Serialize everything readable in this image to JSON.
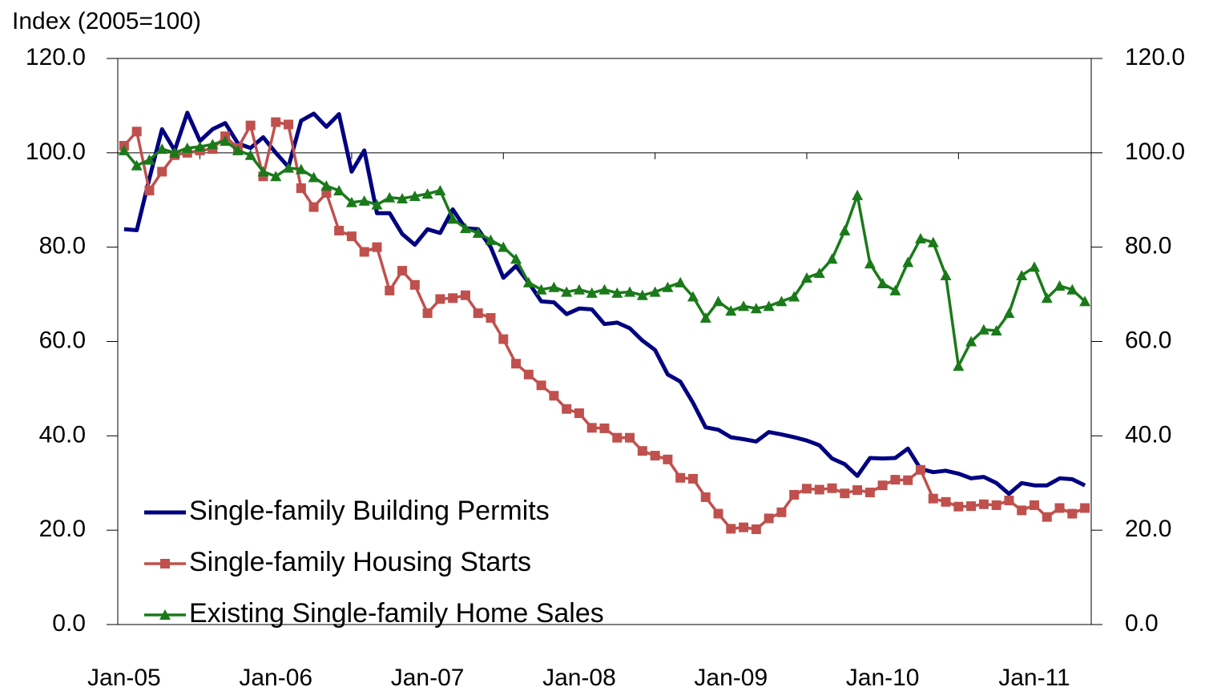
{
  "chart_data": {
    "type": "line",
    "y_axis_label": "Index (2005=100)",
    "categories": [
      "Jan-05",
      null,
      null,
      null,
      null,
      null,
      null,
      null,
      null,
      null,
      null,
      null,
      "Jan-06",
      null,
      null,
      null,
      null,
      null,
      null,
      null,
      null,
      null,
      null,
      null,
      "Jan-07",
      null,
      null,
      null,
      null,
      null,
      null,
      null,
      null,
      null,
      null,
      null,
      "Jan-08",
      null,
      null,
      null,
      null,
      null,
      null,
      null,
      null,
      null,
      null,
      null,
      "Jan-09",
      null,
      null,
      null,
      null,
      null,
      null,
      null,
      null,
      null,
      null,
      null,
      "Jan-10",
      null,
      null,
      null,
      null,
      null,
      null,
      null,
      null,
      null,
      null,
      null,
      "Jan-11",
      null,
      null,
      null,
      null
    ],
    "series": [
      {
        "name": "Single-family Building Permits",
        "color": "#000080",
        "marker": "none",
        "values": [
          83.8,
          83.6,
          94.5,
          105.0,
          100.5,
          108.5,
          102.5,
          105.0,
          106.3,
          102.0,
          101.0,
          103.3,
          100.0,
          97.0,
          106.8,
          108.3,
          105.5,
          108.2,
          96.0,
          100.5,
          87.2,
          87.2,
          82.8,
          80.5,
          83.8,
          83.0,
          88.0,
          84.0,
          83.8,
          80.0,
          73.5,
          76.0,
          72.5,
          68.5,
          68.3,
          65.8,
          67.0,
          66.8,
          63.7,
          64.0,
          62.8,
          60.2,
          58.2,
          53.0,
          51.5,
          47.0,
          41.8,
          41.3,
          39.7,
          39.3,
          38.8,
          40.8,
          40.3,
          39.7,
          39.0,
          38.0,
          35.2,
          34.0,
          31.5,
          35.3,
          35.2,
          35.3,
          37.3,
          33.0,
          32.3,
          32.6,
          32.0,
          31.0,
          31.3,
          30.0,
          27.7,
          30.0,
          29.5,
          29.5,
          31.0,
          30.8,
          29.5
        ]
      },
      {
        "name": "Single-family Housing Starts",
        "color": "#c0504d",
        "marker": "square",
        "values": [
          101.5,
          104.5,
          92.0,
          96.0,
          99.5,
          100.0,
          100.5,
          100.8,
          103.5,
          101.0,
          105.8,
          95.0,
          106.5,
          106.0,
          92.5,
          88.5,
          91.5,
          83.5,
          82.3,
          79.0,
          80.0,
          70.8,
          75.0,
          72.0,
          66.0,
          69.0,
          69.2,
          69.8,
          66.0,
          65.0,
          60.5,
          55.3,
          53.0,
          50.7,
          48.5,
          45.7,
          44.8,
          41.7,
          41.6,
          39.6,
          39.6,
          36.8,
          35.8,
          35.0,
          31.1,
          30.9,
          27.0,
          23.5,
          20.3,
          20.6,
          20.2,
          22.5,
          23.8,
          27.5,
          28.8,
          28.6,
          28.9,
          27.8,
          28.5,
          28.0,
          29.5,
          30.7,
          30.6,
          32.8,
          26.7,
          26.0,
          25.0,
          25.1,
          25.5,
          25.3,
          26.3,
          24.2,
          25.3,
          22.8,
          24.7,
          23.5,
          24.7
        ]
      },
      {
        "name": "Existing Single-family Home Sales",
        "color": "#1a7a1a",
        "marker": "triangle",
        "values": [
          100.5,
          97.3,
          98.5,
          100.8,
          100.0,
          101.0,
          101.3,
          101.8,
          102.5,
          100.5,
          99.5,
          96.0,
          95.0,
          96.8,
          96.5,
          94.8,
          93.0,
          92.0,
          89.5,
          89.8,
          89.0,
          90.5,
          90.3,
          90.8,
          91.3,
          92.0,
          86.0,
          84.0,
          83.0,
          81.5,
          80.0,
          77.5,
          72.5,
          71.0,
          71.5,
          70.5,
          71.0,
          70.3,
          71.0,
          70.3,
          70.5,
          69.8,
          70.5,
          71.5,
          72.5,
          69.5,
          65.0,
          68.5,
          66.5,
          67.5,
          67.0,
          67.5,
          68.5,
          69.5,
          73.5,
          74.5,
          77.5,
          83.5,
          91.0,
          76.5,
          72.3,
          70.8,
          76.8,
          81.8,
          81.0,
          74.0,
          54.8,
          60.0,
          62.5,
          62.3,
          66.0,
          74.0,
          75.8,
          69.2,
          71.8,
          71.0,
          68.5
        ]
      }
    ],
    "ylim": [
      0,
      120
    ],
    "yticks": [
      {
        "value": 0,
        "label": "0.0"
      },
      {
        "value": 20,
        "label": "20.0"
      },
      {
        "value": 40,
        "label": "40.0"
      },
      {
        "value": 60,
        "label": "60.0"
      },
      {
        "value": 80,
        "label": "80.0"
      },
      {
        "value": 100,
        "label": "100.0"
      },
      {
        "value": 120,
        "label": "120.0"
      }
    ],
    "y2lim": [
      0,
      120
    ],
    "y2ticks": [
      {
        "value": 0,
        "label": "0.0"
      },
      {
        "value": 20,
        "label": "20.0"
      },
      {
        "value": 40,
        "label": "40.0"
      },
      {
        "value": 60,
        "label": "60.0"
      },
      {
        "value": 80,
        "label": "80.0"
      },
      {
        "value": 100,
        "label": "100.0"
      },
      {
        "value": 120,
        "label": "120.0"
      }
    ],
    "x_axis_crosses": 100,
    "grid": false,
    "legend": "lower-left"
  }
}
